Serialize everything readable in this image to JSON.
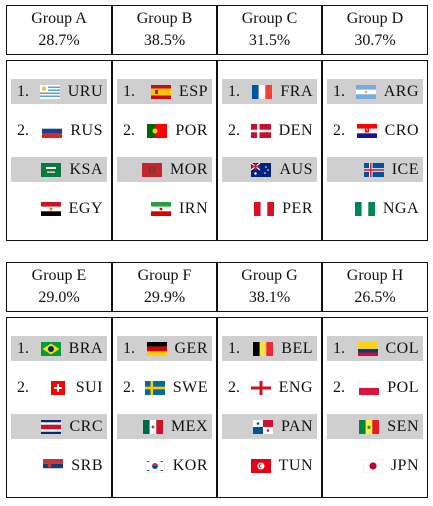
{
  "blocks": [
    {
      "groups": [
        {
          "name": "Group A",
          "pct": "28.7%",
          "teams": [
            {
              "rank": "1.",
              "flag": "uruguay-flag",
              "code": "URU"
            },
            {
              "rank": "2.",
              "flag": "russia-flag",
              "code": "RUS"
            },
            {
              "rank": "",
              "flag": "saudi-arabia-flag",
              "code": "KSA"
            },
            {
              "rank": "",
              "flag": "egypt-flag",
              "code": "EGY"
            }
          ]
        },
        {
          "name": "Group B",
          "pct": "38.5%",
          "teams": [
            {
              "rank": "1.",
              "flag": "spain-flag",
              "code": "ESP"
            },
            {
              "rank": "2.",
              "flag": "portugal-flag",
              "code": "POR"
            },
            {
              "rank": "",
              "flag": "morocco-flag",
              "code": "MOR"
            },
            {
              "rank": "",
              "flag": "iran-flag",
              "code": "IRN"
            }
          ]
        },
        {
          "name": "Group C",
          "pct": "31.5%",
          "teams": [
            {
              "rank": "1.",
              "flag": "france-flag",
              "code": "FRA"
            },
            {
              "rank": "2.",
              "flag": "denmark-flag",
              "code": "DEN"
            },
            {
              "rank": "",
              "flag": "australia-flag",
              "code": "AUS"
            },
            {
              "rank": "",
              "flag": "peru-flag",
              "code": "PER"
            }
          ]
        },
        {
          "name": "Group D",
          "pct": "30.7%",
          "teams": [
            {
              "rank": "1.",
              "flag": "argentina-flag",
              "code": "ARG"
            },
            {
              "rank": "2.",
              "flag": "croatia-flag",
              "code": "CRO"
            },
            {
              "rank": "",
              "flag": "iceland-flag",
              "code": "ICE"
            },
            {
              "rank": "",
              "flag": "nigeria-flag",
              "code": "NGA"
            }
          ]
        }
      ]
    },
    {
      "groups": [
        {
          "name": "Group E",
          "pct": "29.0%",
          "teams": [
            {
              "rank": "1.",
              "flag": "brazil-flag",
              "code": "BRA"
            },
            {
              "rank": "2.",
              "flag": "switzerland-flag",
              "code": "SUI"
            },
            {
              "rank": "",
              "flag": "costa-rica-flag",
              "code": "CRC"
            },
            {
              "rank": "",
              "flag": "serbia-flag",
              "code": "SRB"
            }
          ]
        },
        {
          "name": "Group F",
          "pct": "29.9%",
          "teams": [
            {
              "rank": "1.",
              "flag": "germany-flag",
              "code": "GER"
            },
            {
              "rank": "2.",
              "flag": "sweden-flag",
              "code": "SWE"
            },
            {
              "rank": "",
              "flag": "mexico-flag",
              "code": "MEX"
            },
            {
              "rank": "",
              "flag": "south-korea-flag",
              "code": "KOR"
            }
          ]
        },
        {
          "name": "Group G",
          "pct": "38.1%",
          "teams": [
            {
              "rank": "1.",
              "flag": "belgium-flag",
              "code": "BEL"
            },
            {
              "rank": "2.",
              "flag": "england-flag",
              "code": "ENG"
            },
            {
              "rank": "",
              "flag": "panama-flag",
              "code": "PAN"
            },
            {
              "rank": "",
              "flag": "tunisia-flag",
              "code": "TUN"
            }
          ]
        },
        {
          "name": "Group H",
          "pct": "26.5%",
          "teams": [
            {
              "rank": "1.",
              "flag": "colombia-flag",
              "code": "COL"
            },
            {
              "rank": "2.",
              "flag": "poland-flag",
              "code": "POL"
            },
            {
              "rank": "",
              "flag": "senegal-flag",
              "code": "SEN"
            },
            {
              "rank": "",
              "flag": "japan-flag",
              "code": "JPN"
            }
          ]
        }
      ]
    }
  ]
}
